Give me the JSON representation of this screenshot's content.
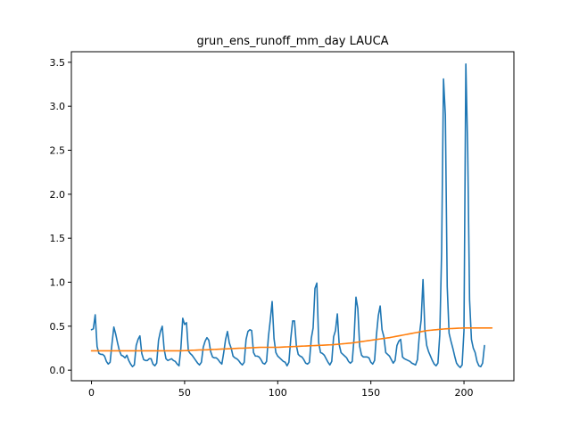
{
  "chart_data": {
    "type": "line",
    "title": "grun_ens_runoff_mm_day LAUCA",
    "xlabel": "",
    "ylabel": "",
    "xlim": [
      -10.8,
      226.8
    ],
    "ylim": [
      -0.12,
      3.62
    ],
    "xticks": [
      0,
      50,
      100,
      150,
      200
    ],
    "yticks": [
      0.0,
      0.5,
      1.0,
      1.5,
      2.0,
      2.5,
      3.0,
      3.5
    ],
    "ytick_labels": [
      "0.0",
      "0.5",
      "1.0",
      "1.5",
      "2.0",
      "2.5",
      "3.0",
      "3.5"
    ],
    "grid": false,
    "series": [
      {
        "color": "#1f77b4",
        "values": [
          0.46,
          0.47,
          0.63,
          0.27,
          0.19,
          0.18,
          0.18,
          0.16,
          0.1,
          0.07,
          0.09,
          0.3,
          0.49,
          0.41,
          0.31,
          0.22,
          0.17,
          0.16,
          0.14,
          0.17,
          0.11,
          0.07,
          0.04,
          0.06,
          0.28,
          0.35,
          0.39,
          0.19,
          0.12,
          0.11,
          0.11,
          0.13,
          0.13,
          0.07,
          0.05,
          0.08,
          0.34,
          0.44,
          0.5,
          0.24,
          0.13,
          0.11,
          0.12,
          0.13,
          0.11,
          0.1,
          0.07,
          0.05,
          0.25,
          0.59,
          0.52,
          0.54,
          0.22,
          0.19,
          0.17,
          0.14,
          0.11,
          0.08,
          0.06,
          0.09,
          0.26,
          0.33,
          0.37,
          0.34,
          0.21,
          0.15,
          0.14,
          0.14,
          0.12,
          0.09,
          0.07,
          0.2,
          0.35,
          0.44,
          0.31,
          0.25,
          0.16,
          0.14,
          0.13,
          0.11,
          0.08,
          0.06,
          0.09,
          0.35,
          0.44,
          0.46,
          0.45,
          0.2,
          0.16,
          0.16,
          0.15,
          0.12,
          0.08,
          0.07,
          0.1,
          0.38,
          0.57,
          0.78,
          0.36,
          0.2,
          0.16,
          0.14,
          0.12,
          0.1,
          0.09,
          0.05,
          0.09,
          0.36,
          0.56,
          0.56,
          0.28,
          0.18,
          0.16,
          0.15,
          0.12,
          0.08,
          0.07,
          0.09,
          0.36,
          0.48,
          0.93,
          0.99,
          0.31,
          0.2,
          0.19,
          0.17,
          0.13,
          0.09,
          0.06,
          0.1,
          0.38,
          0.45,
          0.64,
          0.29,
          0.2,
          0.18,
          0.16,
          0.14,
          0.1,
          0.08,
          0.1,
          0.37,
          0.83,
          0.7,
          0.27,
          0.17,
          0.15,
          0.15,
          0.15,
          0.14,
          0.09,
          0.07,
          0.11,
          0.4,
          0.62,
          0.73,
          0.46,
          0.38,
          0.2,
          0.18,
          0.16,
          0.12,
          0.08,
          0.11,
          0.28,
          0.33,
          0.35,
          0.15,
          0.13,
          0.12,
          0.11,
          0.1,
          0.08,
          0.07,
          0.06,
          0.12,
          0.39,
          0.57,
          1.03,
          0.46,
          0.28,
          0.21,
          0.16,
          0.11,
          0.07,
          0.05,
          0.08,
          0.4,
          1.35,
          3.31,
          2.9,
          0.95,
          0.42,
          0.33,
          0.25,
          0.16,
          0.08,
          0.05,
          0.03,
          0.06,
          0.45,
          3.48,
          2.5,
          0.8,
          0.35,
          0.25,
          0.2,
          0.1,
          0.05,
          0.04,
          0.08,
          0.28
        ]
      },
      {
        "color": "#ff7f0e",
        "values": [
          0.22,
          0.22,
          0.22,
          0.22,
          0.22,
          0.22,
          0.22,
          0.22,
          0.22,
          0.22,
          0.22,
          0.22,
          0.22,
          0.22,
          0.22,
          0.22,
          0.22,
          0.22,
          0.22,
          0.22,
          0.22,
          0.22,
          0.22,
          0.22,
          0.22,
          0.22,
          0.22,
          0.22,
          0.22,
          0.22,
          0.22,
          0.22,
          0.22,
          0.22,
          0.22,
          0.22,
          0.22,
          0.22,
          0.22,
          0.22,
          0.22,
          0.22,
          0.22,
          0.22,
          0.22,
          0.22,
          0.22,
          0.22,
          0.22,
          0.221,
          0.222,
          0.223,
          0.224,
          0.225,
          0.226,
          0.227,
          0.228,
          0.229,
          0.23,
          0.23,
          0.23,
          0.231,
          0.232,
          0.233,
          0.234,
          0.235,
          0.236,
          0.237,
          0.238,
          0.239,
          0.24,
          0.241,
          0.242,
          0.243,
          0.244,
          0.245,
          0.246,
          0.247,
          0.248,
          0.249,
          0.25,
          0.25,
          0.251,
          0.252,
          0.253,
          0.254,
          0.255,
          0.256,
          0.257,
          0.258,
          0.259,
          0.26,
          0.26,
          0.26,
          0.26,
          0.26,
          0.26,
          0.26,
          0.26,
          0.26,
          0.26,
          0.261,
          0.262,
          0.263,
          0.264,
          0.265,
          0.266,
          0.267,
          0.268,
          0.269,
          0.27,
          0.271,
          0.272,
          0.273,
          0.274,
          0.275,
          0.276,
          0.277,
          0.278,
          0.279,
          0.28,
          0.281,
          0.282,
          0.283,
          0.284,
          0.285,
          0.286,
          0.287,
          0.288,
          0.289,
          0.29,
          0.292,
          0.294,
          0.296,
          0.298,
          0.3,
          0.302,
          0.304,
          0.306,
          0.308,
          0.31,
          0.313,
          0.316,
          0.319,
          0.322,
          0.325,
          0.328,
          0.331,
          0.334,
          0.337,
          0.34,
          0.343,
          0.346,
          0.349,
          0.352,
          0.355,
          0.358,
          0.361,
          0.364,
          0.367,
          0.37,
          0.374,
          0.378,
          0.382,
          0.386,
          0.39,
          0.394,
          0.398,
          0.402,
          0.406,
          0.41,
          0.414,
          0.418,
          0.422,
          0.426,
          0.43,
          0.434,
          0.438,
          0.442,
          0.446,
          0.45,
          0.452,
          0.454,
          0.456,
          0.458,
          0.46,
          0.462,
          0.464,
          0.466,
          0.468,
          0.47,
          0.471,
          0.472,
          0.473,
          0.474,
          0.475,
          0.476,
          0.477,
          0.478,
          0.479,
          0.48,
          0.48,
          0.48,
          0.48,
          0.48,
          0.48,
          0.48,
          0.48,
          0.48,
          0.48,
          0.48,
          0.48,
          0.48,
          0.48,
          0.48,
          0.48
        ]
      }
    ]
  }
}
